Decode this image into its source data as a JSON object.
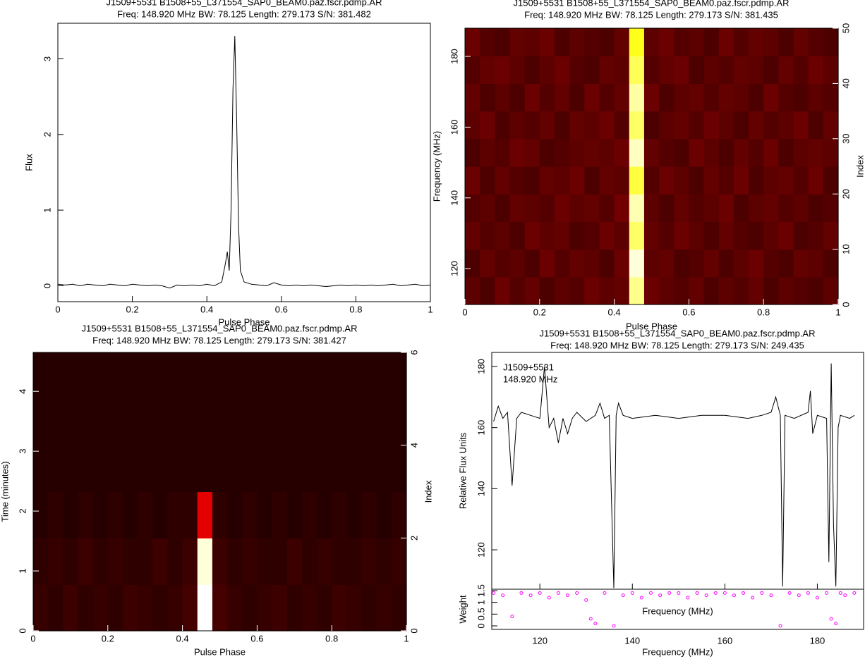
{
  "chart_data": [
    {
      "type": "line",
      "title": "J1509+5531  B1508+55_L371554_SAP0_BEAM0.paz.fscr.pdmp.AR",
      "subtitle": "Freq: 148.920 MHz BW: 78.125 Length: 279.173 S/N: 381.482",
      "xlabel": "Pulse Phase",
      "ylabel": "Flux",
      "color": "#000000",
      "x": [
        0,
        0.02,
        0.04,
        0.06,
        0.08,
        0.1,
        0.12,
        0.14,
        0.16,
        0.18,
        0.2,
        0.22,
        0.24,
        0.26,
        0.28,
        0.3,
        0.32,
        0.34,
        0.36,
        0.38,
        0.4,
        0.42,
        0.44,
        0.45,
        0.455,
        0.46,
        0.465,
        0.47,
        0.475,
        0.48,
        0.485,
        0.49,
        0.5,
        0.52,
        0.54,
        0.56,
        0.58,
        0.6,
        0.62,
        0.64,
        0.66,
        0.68,
        0.7,
        0.72,
        0.74,
        0.76,
        0.78,
        0.8,
        0.82,
        0.84,
        0.86,
        0.88,
        0.9,
        0.92,
        0.94,
        0.96,
        0.98,
        1
      ],
      "values": [
        0.02,
        0.01,
        0.02,
        0,
        0.02,
        0.01,
        0,
        0.02,
        0.01,
        0,
        0.02,
        0.01,
        0,
        0.01,
        0,
        -0.03,
        0.01,
        0,
        0.01,
        0,
        0.02,
        0,
        0.05,
        0.3,
        0.45,
        0.2,
        1.0,
        2.6,
        3.3,
        2.2,
        0.8,
        0.2,
        0.05,
        0.02,
        0.01,
        0,
        0.04,
        0.01,
        0,
        0.01,
        0,
        0.01,
        0,
        -0.01,
        0,
        0.01,
        0,
        0.01,
        0,
        0.01,
        0,
        0.01,
        0.02,
        0,
        0.01,
        0.02,
        0,
        0.01
      ],
      "xlim": [
        0,
        1
      ],
      "xticks": [
        0,
        0.2,
        0.4,
        0.6,
        0.8,
        1
      ],
      "ylim": [
        -0.21,
        3.47
      ],
      "yticks": [
        0,
        1,
        2,
        3
      ]
    },
    {
      "type": "heatmap",
      "title": "J1509+5531  B1508+55_L371554_SAP0_BEAM0.paz.fscr.pdmp.AR",
      "subtitle": "Freq: 148.920 MHz BW: 78.125 Length: 279.173 S/N: 381.435",
      "xlabel": "Pulse Phase",
      "ylabel": "Frequency (MHz)",
      "y2label": "Index",
      "colormap": "heat",
      "matrix": [
        [
          0.12,
          0.1,
          0.14,
          0.11,
          0.13,
          0.1,
          0.12,
          0.11,
          0.14,
          0.12,
          0.13,
          0.85,
          0.14,
          0.12,
          0.11,
          0.13,
          0.1,
          0.12,
          0.11,
          0.13,
          0.1,
          0.12,
          0.11,
          0.1,
          0.12
        ],
        [
          0.1,
          0.13,
          0.11,
          0.12,
          0.1,
          0.14,
          0.11,
          0.13,
          0.12,
          0.1,
          0.14,
          0.95,
          0.12,
          0.13,
          0.1,
          0.11,
          0.13,
          0.1,
          0.12,
          0.14,
          0.11,
          0.1,
          0.13,
          0.12,
          0.1
        ],
        [
          0.13,
          0.11,
          0.12,
          0.1,
          0.14,
          0.12,
          0.13,
          0.1,
          0.11,
          0.14,
          0.12,
          0.8,
          0.13,
          0.11,
          0.14,
          0.12,
          0.1,
          0.13,
          0.11,
          0.1,
          0.12,
          0.14,
          0.1,
          0.11,
          0.13
        ],
        [
          0.11,
          0.12,
          0.1,
          0.13,
          0.12,
          0.11,
          0.14,
          0.12,
          0.13,
          0.11,
          0.15,
          0.9,
          0.12,
          0.1,
          0.13,
          0.11,
          0.12,
          0.14,
          0.1,
          0.12,
          0.13,
          0.11,
          0.12,
          0.1,
          0.11
        ],
        [
          0.14,
          0.1,
          0.13,
          0.11,
          0.1,
          0.13,
          0.12,
          0.14,
          0.1,
          0.13,
          0.12,
          0.75,
          0.11,
          0.14,
          0.12,
          0.1,
          0.13,
          0.11,
          0.14,
          0.1,
          0.12,
          0.13,
          0.11,
          0.14,
          0.1
        ],
        [
          0.1,
          0.12,
          0.11,
          0.14,
          0.13,
          0.1,
          0.11,
          0.12,
          0.13,
          0.12,
          0.14,
          0.92,
          0.13,
          0.11,
          0.1,
          0.14,
          0.12,
          0.1,
          0.13,
          0.11,
          0.14,
          0.1,
          0.12,
          0.13,
          0.12
        ],
        [
          0.12,
          0.14,
          0.1,
          0.12,
          0.11,
          0.13,
          0.1,
          0.13,
          0.12,
          0.14,
          0.11,
          0.8,
          0.1,
          0.12,
          0.13,
          0.11,
          0.14,
          0.12,
          0.1,
          0.13,
          0.11,
          0.12,
          0.14,
          0.1,
          0.13
        ],
        [
          0.13,
          0.1,
          0.12,
          0.1,
          0.14,
          0.11,
          0.13,
          0.1,
          0.14,
          0.11,
          0.13,
          0.88,
          0.14,
          0.1,
          0.12,
          0.13,
          0.11,
          0.13,
          0.12,
          0.1,
          0.14,
          0.11,
          0.1,
          0.12,
          0.11
        ],
        [
          0.11,
          0.13,
          0.14,
          0.12,
          0.1,
          0.12,
          0.14,
          0.11,
          0.1,
          0.13,
          0.12,
          0.78,
          0.11,
          0.13,
          0.14,
          0.1,
          0.12,
          0.11,
          0.13,
          0.12,
          0.1,
          0.13,
          0.11,
          0.14,
          0.12
        ],
        [
          0.14,
          0.11,
          0.1,
          0.13,
          0.12,
          0.14,
          0.1,
          0.12,
          0.11,
          0.1,
          0.13,
          0.7,
          0.12,
          0.14,
          0.11,
          0.12,
          0.1,
          0.14,
          0.11,
          0.13,
          0.12,
          0.1,
          0.13,
          0.11,
          0.1
        ]
      ],
      "xlim": [
        0,
        1
      ],
      "xticks": [
        0,
        0.2,
        0.4,
        0.6,
        0.8,
        1
      ],
      "ylim": [
        109.86,
        187.98
      ],
      "yticks": [
        120,
        140,
        160,
        180
      ],
      "y2lim": [
        0,
        50
      ],
      "y2ticks": [
        0,
        10,
        20,
        30,
        40,
        50
      ]
    },
    {
      "type": "heatmap",
      "title": "J1509+5531  B1508+55_L371554_SAP0_BEAM0.paz.fscr.pdmp.AR",
      "subtitle": "Freq: 148.920 MHz BW: 78.125 Length: 279.173 S/N: 381.427",
      "xlabel": "Pulse Phase",
      "ylabel": "Time (minutes)",
      "y2label": "Index",
      "colormap": "heat",
      "matrix": [
        [
          0.07,
          0.06,
          0.08,
          0.06,
          0.07,
          0.06,
          0.08,
          0.07,
          0.06,
          0.07,
          0.09,
          1.0,
          0.09,
          0.07,
          0.06,
          0.07,
          0.08,
          0.06,
          0.07,
          0.06,
          0.08,
          0.07,
          0.06,
          0.07,
          0.06
        ],
        [
          0.06,
          0.07,
          0.06,
          0.08,
          0.06,
          0.07,
          0.06,
          0.06,
          0.08,
          0.06,
          0.08,
          0.95,
          0.08,
          0.06,
          0.07,
          0.06,
          0.06,
          0.08,
          0.06,
          0.07,
          0.06,
          0.06,
          0.07,
          0.06,
          0.07
        ],
        [
          0.05,
          0.06,
          0.05,
          0.06,
          0.05,
          0.06,
          0.05,
          0.06,
          0.05,
          0.06,
          0.06,
          0.3,
          0.06,
          0.05,
          0.06,
          0.05,
          0.06,
          0.05,
          0.06,
          0.05,
          0.06,
          0.05,
          0.06,
          0.05,
          0.06
        ],
        [
          0.05,
          0.05,
          0.05,
          0.05,
          0.05,
          0.05,
          0.05,
          0.05,
          0.05,
          0.05,
          0.05,
          0.05,
          0.05,
          0.05,
          0.05,
          0.05,
          0.05,
          0.05,
          0.05,
          0.05,
          0.05,
          0.05,
          0.05,
          0.05,
          0.05
        ],
        [
          0.05,
          0.05,
          0.05,
          0.05,
          0.05,
          0.05,
          0.05,
          0.05,
          0.05,
          0.05,
          0.05,
          0.05,
          0.05,
          0.05,
          0.05,
          0.05,
          0.05,
          0.05,
          0.05,
          0.05,
          0.05,
          0.05,
          0.05,
          0.05,
          0.05
        ],
        [
          0.05,
          0.05,
          0.05,
          0.05,
          0.05,
          0.05,
          0.05,
          0.05,
          0.05,
          0.05,
          0.05,
          0.05,
          0.05,
          0.05,
          0.05,
          0.05,
          0.05,
          0.05,
          0.05,
          0.05,
          0.05,
          0.05,
          0.05,
          0.05,
          0.05
        ]
      ],
      "xlim": [
        0,
        1
      ],
      "xticks": [
        0,
        0.2,
        0.4,
        0.6,
        0.8,
        1
      ],
      "ylim": [
        0,
        4.65
      ],
      "yticks": [
        0,
        1,
        2,
        3,
        4
      ],
      "y2lim": [
        0,
        6
      ],
      "y2ticks": [
        0,
        2,
        4,
        6
      ]
    },
    {
      "type": "line",
      "title": "J1509+5531  B1508+55_L371554_SAP0_BEAM0.paz.fscr.pdmp.AR",
      "subtitle": "Freq: 148.920 MHz BW: 78.125 Length: 279.173 S/N: 249.435",
      "xlabel": "Frequency (MHz)",
      "ylabel": "Relative Flux Units",
      "color": "#000000",
      "annotations": [
        "J1509+5531",
        "148.920 MHz"
      ],
      "x": [
        110,
        111,
        112,
        113,
        114,
        115,
        116,
        118,
        120,
        121,
        122,
        123,
        124,
        125,
        126,
        127,
        128,
        130,
        132,
        133,
        134,
        135,
        136,
        136.5,
        137,
        138,
        140,
        145,
        150,
        155,
        160,
        165,
        168,
        170,
        171,
        172,
        172.5,
        173,
        175,
        178,
        178.5,
        179,
        180,
        182,
        182.5,
        183,
        183.5,
        184,
        184.5,
        185,
        187,
        188
      ],
      "values": [
        162,
        167,
        163,
        165,
        141,
        163,
        165,
        164,
        163,
        180,
        160,
        163,
        155,
        163,
        158,
        163,
        165,
        162,
        164,
        168,
        163,
        164,
        107.5,
        164,
        168,
        164,
        163,
        164,
        163,
        164,
        164,
        163,
        164,
        165,
        170,
        164,
        108,
        164,
        163,
        165,
        172,
        158,
        164,
        163,
        116,
        181,
        128,
        108,
        160,
        164,
        163,
        164
      ],
      "xlim": [
        109.6,
        190
      ],
      "xticks": [
        120,
        140,
        160,
        180
      ],
      "ylim": [
        107.1,
        184.6
      ],
      "yticks": [
        120,
        140,
        160,
        180
      ]
    },
    {
      "type": "scatter",
      "xlabel": "Frequency (MHz)",
      "ylabel": "Weight",
      "color": "#ff00ff",
      "x": [
        110,
        112,
        114,
        116,
        118,
        120,
        122,
        124,
        126,
        128,
        130,
        131,
        132,
        134,
        136,
        138,
        140,
        142,
        144,
        146,
        148,
        150,
        152,
        154,
        156,
        158,
        160,
        162,
        164,
        166,
        168,
        170,
        172,
        174,
        176,
        178,
        180,
        182,
        183,
        184,
        185,
        186,
        188
      ],
      "values": [
        1.4,
        1.3,
        0.4,
        1.4,
        1.3,
        1.4,
        1.2,
        1.4,
        1.3,
        1.4,
        1.1,
        0.3,
        0.1,
        1.4,
        0.0,
        1.3,
        1.4,
        1.2,
        1.4,
        1.3,
        1.4,
        1.4,
        1.2,
        1.4,
        1.3,
        1.4,
        1.4,
        1.3,
        1.4,
        1.2,
        1.4,
        1.3,
        0.0,
        1.4,
        1.3,
        1.4,
        1.2,
        1.4,
        0.3,
        0.1,
        1.4,
        1.3,
        1.4
      ],
      "xlim": [
        109.6,
        190
      ],
      "ylim": [
        -0.15,
        1.56
      ],
      "yticks": [
        0,
        0.5,
        1,
        1.5
      ]
    }
  ]
}
